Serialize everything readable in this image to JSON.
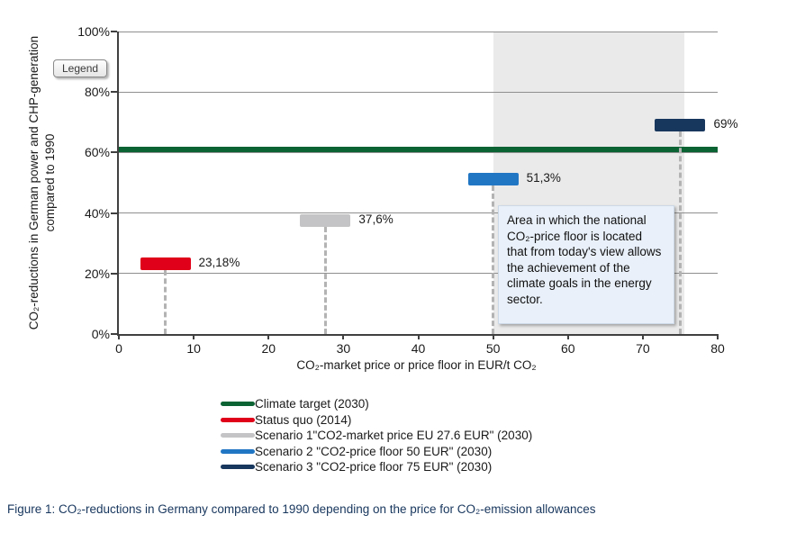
{
  "legend_button": {
    "label": "Legend"
  },
  "caption": "Figure 1: CO₂-reductions in Germany compared to 1990 depending on the price for CO₂-emission allowances",
  "annotation": {
    "text": "Area in which the national CO₂-price floor is located that from today's view allows the achievement of the climate goals in the energy sector."
  },
  "chart_data": {
    "type": "scatter",
    "title": "",
    "xlabel": "CO₂-market price or price floor in EUR/t CO₂",
    "ylabel": "CO₂-reductions in German power and CHP-generation compared to 1990",
    "ylabel_lines": [
      "CO₂-reductions in German power and CHP-generation",
      "compared to 1990"
    ],
    "xlim": [
      0,
      80
    ],
    "ylim": [
      0,
      100
    ],
    "x_ticks": [
      0,
      10,
      20,
      30,
      40,
      50,
      60,
      70,
      80
    ],
    "y_ticks": [
      0,
      20,
      40,
      60,
      80,
      100
    ],
    "y_tick_labels": [
      "0%",
      "20%",
      "40%",
      "60%",
      "80%",
      "100%"
    ],
    "grid": "horizontal",
    "legend_position": "bottom",
    "climate_target": {
      "name": "Climate target (2030)",
      "y": 61,
      "color": "#0b6334"
    },
    "points": [
      {
        "name": "Status quo (2014)",
        "x": 6.2,
        "y": 23.18,
        "label": "23,18%",
        "color": "#e00019"
      },
      {
        "name": "Scenario 1\"CO2-market price EU 27.6 EUR\" (2030)",
        "x": 27.6,
        "y": 37.6,
        "label": "37,6%",
        "color": "#c4c4c6"
      },
      {
        "name": "Scenario 2 \"CO2-price floor 50 EUR\" (2030)",
        "x": 50,
        "y": 51.3,
        "label": "51,3%",
        "color": "#2176c4"
      },
      {
        "name": "Scenario 3 \"CO2-price floor 75 EUR\" (2030)",
        "x": 75,
        "y": 69,
        "label": "69%",
        "color": "#17375d"
      }
    ],
    "shaded_region": {
      "x_from": 50,
      "x_to": 75.5,
      "color": "#eaeaea"
    },
    "legend": [
      {
        "label": "Climate target (2030)",
        "color": "#0b6334"
      },
      {
        "label": "Status quo (2014)",
        "color": "#e00019"
      },
      {
        "label": "Scenario 1\"CO2-market price EU 27.6 EUR\" (2030)",
        "color": "#c4c4c6"
      },
      {
        "label": "Scenario 2 \"CO2-price floor 50 EUR\" (2030)",
        "color": "#2176c4"
      },
      {
        "label": "Scenario 3 \"CO2-price floor 75 EUR\" (2030)",
        "color": "#17375d"
      }
    ]
  }
}
